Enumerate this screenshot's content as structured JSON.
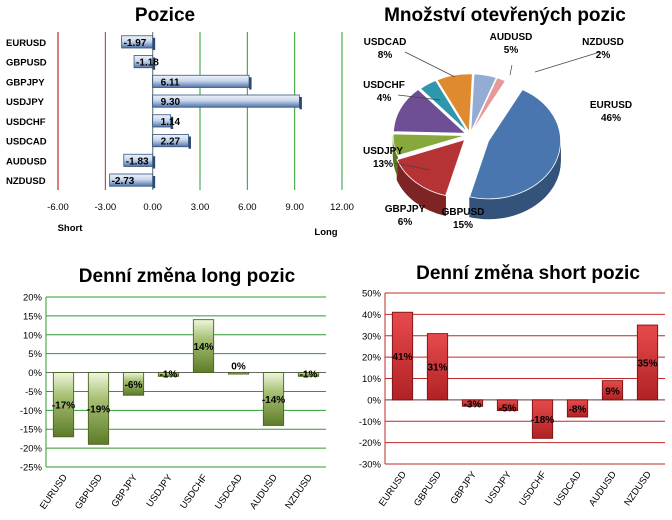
{
  "colors": {
    "bar_blue": "#5a7fb5",
    "bar_blue_light": "#dfe8f5",
    "bar_green": "#6f8f34",
    "bar_green_light": "#e6efcf",
    "bar_red": "#c0292b",
    "bar_red_light": "#f2b6b6",
    "grid_green": "#2e9b2e",
    "grid_red": "#c0282a",
    "pie_colors": [
      "#4a76b0",
      "#b63335",
      "#86a83c",
      "#6e4f95",
      "#2f97ad",
      "#e08a2f",
      "#94acd4",
      "#e69a98"
    ]
  },
  "chart_data": [
    {
      "id": "pozice",
      "type": "bar",
      "orientation": "horizontal",
      "title": "Pozice",
      "categories": [
        "EURUSD",
        "GBPUSD",
        "GBPJPY",
        "USDJPY",
        "USDCHF",
        "USDCAD",
        "AUDUSD",
        "NZDUSD"
      ],
      "values": [
        -1.97,
        -1.18,
        6.11,
        9.3,
        1.14,
        2.27,
        -1.83,
        -2.73
      ],
      "value_labels": [
        "-1.97",
        "-1.18",
        "6.11",
        "9.30",
        "1.14",
        "2.27",
        "-1.83",
        "-2.73"
      ],
      "xlim": [
        -6,
        12
      ],
      "xticks": [
        "-6.00",
        "-3.00",
        "0.00",
        "3.00",
        "6.00",
        "9.00",
        "12.00"
      ],
      "xtick_values": [
        -6,
        -3,
        0,
        3,
        6,
        9,
        12
      ],
      "xlabel_left": "Short",
      "xlabel_right": "Long",
      "grid": true
    },
    {
      "id": "mnozstvi",
      "type": "pie",
      "title": "Množství otevřených pozic",
      "slices": [
        {
          "label": "EURUSD",
          "value": 46,
          "text": "46%"
        },
        {
          "label": "GBPUSD",
          "value": 15,
          "text": "15%"
        },
        {
          "label": "GBPJPY",
          "value": 6,
          "text": "6%"
        },
        {
          "label": "USDJPY",
          "value": 13,
          "text": "13%"
        },
        {
          "label": "USDCHF",
          "value": 4,
          "text": "4%"
        },
        {
          "label": "USDCAD",
          "value": 8,
          "text": "8%"
        },
        {
          "label": "AUDUSD",
          "value": 5,
          "text": "5%"
        },
        {
          "label": "NZDUSD",
          "value": 2,
          "text": "2%"
        }
      ]
    },
    {
      "id": "long",
      "type": "bar",
      "title": "Denní změna long pozic",
      "categories": [
        "EURUSD",
        "GBPUSD",
        "GBPJPY",
        "USDJPY",
        "USDCHF",
        "USDCAD",
        "AUDUSD",
        "NZDUSD"
      ],
      "values": [
        -17,
        -19,
        -6,
        -1,
        14,
        0,
        -14,
        -1
      ],
      "value_labels": [
        "-17%",
        "-19%",
        "-6%",
        "-1%",
        "14%",
        "0%",
        "-14%",
        "-1%"
      ],
      "ylim": [
        -25,
        20
      ],
      "yticks": [
        "20%",
        "15%",
        "10%",
        "5%",
        "0%",
        "-5%",
        "-10%",
        "-15%",
        "-20%",
        "-25%"
      ],
      "ytick_values": [
        20,
        15,
        10,
        5,
        0,
        -5,
        -10,
        -15,
        -20,
        -25
      ],
      "grid": true
    },
    {
      "id": "short",
      "type": "bar",
      "title": "Denní změna short pozic",
      "categories": [
        "EURUSD",
        "GBPUSD",
        "GBPJPY",
        "USDJPY",
        "USDCHF",
        "USDCAD",
        "AUDUSD",
        "NZDUSD"
      ],
      "values": [
        41,
        31,
        -3,
        -5,
        -18,
        -8,
        9,
        35
      ],
      "value_labels": [
        "41%",
        "31%",
        "-3%",
        "-5%",
        "-18%",
        "-8%",
        "9%",
        "35%"
      ],
      "ylim": [
        -30,
        50
      ],
      "yticks": [
        "50%",
        "40%",
        "30%",
        "20%",
        "10%",
        "0%",
        "-10%",
        "-20%",
        "-30%"
      ],
      "ytick_values": [
        50,
        40,
        30,
        20,
        10,
        0,
        -10,
        -20,
        -30
      ],
      "grid": true
    }
  ]
}
